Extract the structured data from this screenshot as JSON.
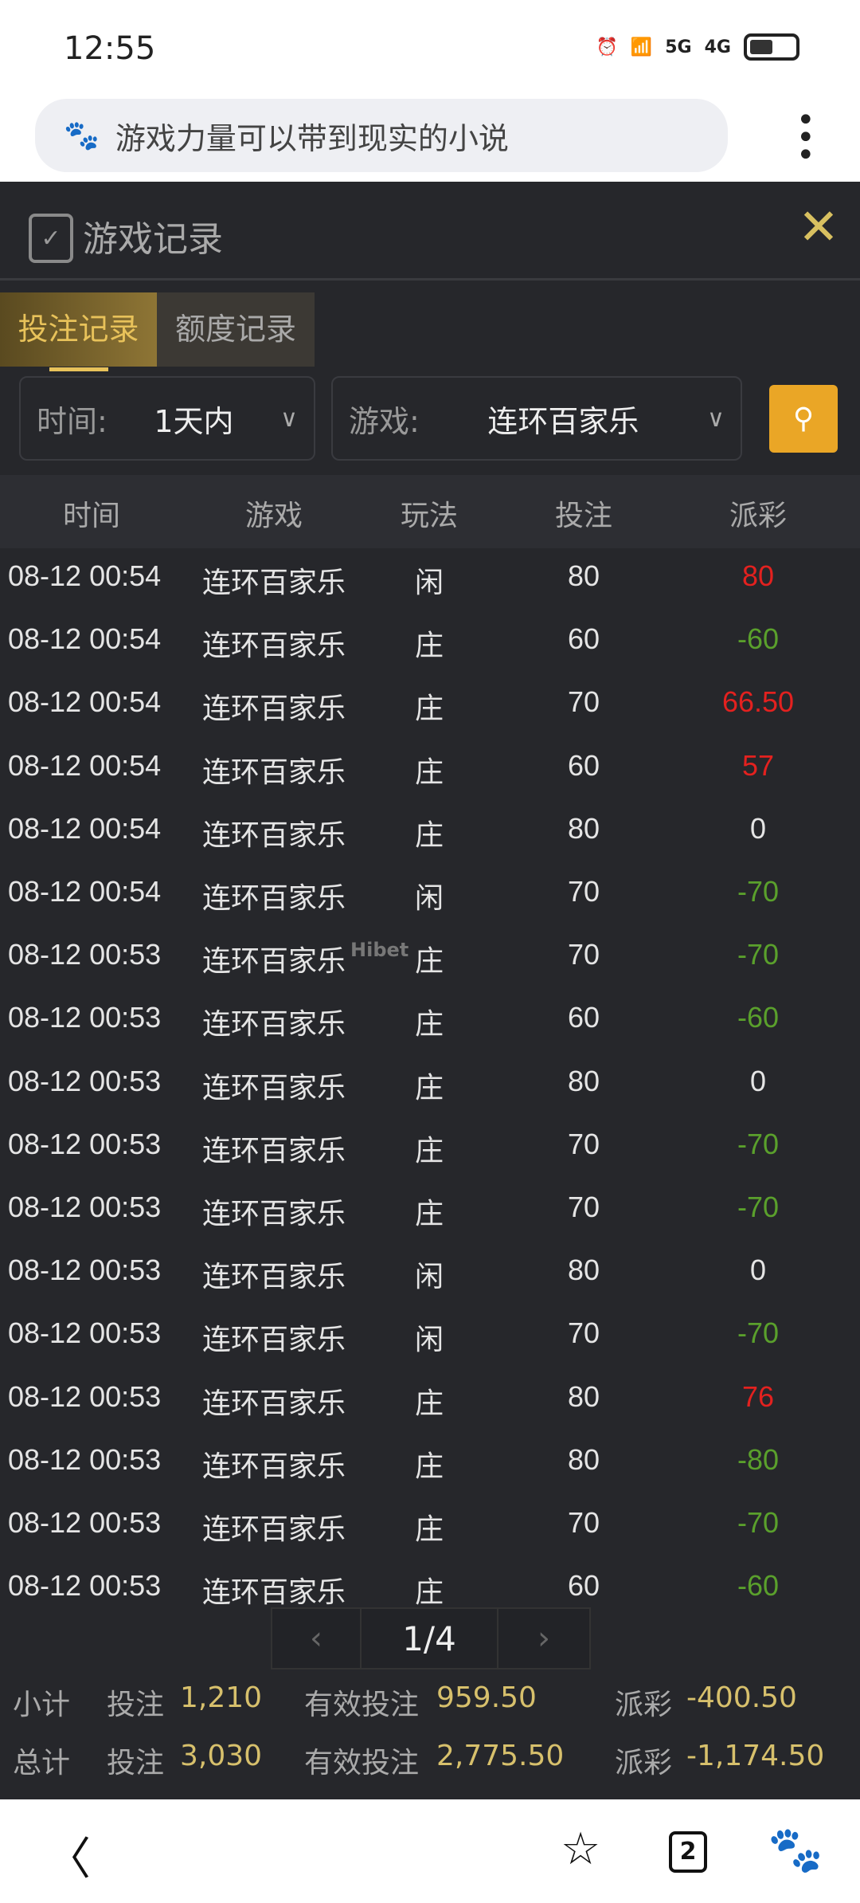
{
  "status": {
    "time": "12:55",
    "net1": "5G",
    "net2": "4G"
  },
  "browser": {
    "query": "游戏力量可以带到现实的小说",
    "tab_count": "2"
  },
  "panel": {
    "title": "游戏记录",
    "tabs": [
      {
        "label": "投注记录",
        "active": true
      },
      {
        "label": "额度记录",
        "active": false
      }
    ],
    "filters": {
      "time_label": "时间:",
      "time_value": "1天内",
      "game_label": "游戏:",
      "game_value": "连环百家乐"
    },
    "columns": [
      "时间",
      "游戏",
      "玩法",
      "投注",
      "派彩"
    ],
    "rows": [
      [
        "08-12 00:54",
        "连环百家乐",
        "闲",
        "80",
        "80"
      ],
      [
        "08-12 00:54",
        "连环百家乐",
        "庄",
        "60",
        "-60"
      ],
      [
        "08-12 00:54",
        "连环百家乐",
        "庄",
        "70",
        "66.50"
      ],
      [
        "08-12 00:54",
        "连环百家乐",
        "庄",
        "60",
        "57"
      ],
      [
        "08-12 00:54",
        "连环百家乐",
        "庄",
        "80",
        "0"
      ],
      [
        "08-12 00:54",
        "连环百家乐",
        "闲",
        "70",
        "-70"
      ],
      [
        "08-12 00:53",
        "连环百家乐",
        "庄",
        "70",
        "-70"
      ],
      [
        "08-12 00:53",
        "连环百家乐",
        "庄",
        "60",
        "-60"
      ],
      [
        "08-12 00:53",
        "连环百家乐",
        "庄",
        "80",
        "0"
      ],
      [
        "08-12 00:53",
        "连环百家乐",
        "庄",
        "70",
        "-70"
      ],
      [
        "08-12 00:53",
        "连环百家乐",
        "庄",
        "70",
        "-70"
      ],
      [
        "08-12 00:53",
        "连环百家乐",
        "闲",
        "80",
        "0"
      ],
      [
        "08-12 00:53",
        "连环百家乐",
        "闲",
        "70",
        "-70"
      ],
      [
        "08-12 00:53",
        "连环百家乐",
        "庄",
        "80",
        "76"
      ],
      [
        "08-12 00:53",
        "连环百家乐",
        "庄",
        "80",
        "-80"
      ],
      [
        "08-12 00:53",
        "连环百家乐",
        "庄",
        "70",
        "-70"
      ],
      [
        "08-12 00:53",
        "连环百家乐",
        "庄",
        "60",
        "-60"
      ]
    ],
    "watermark": "Hibet",
    "pagination": {
      "page": "1/4"
    },
    "subtotal": {
      "label": "小计",
      "bet_label": "投注",
      "bet": "1,210",
      "valid_label": "有效投注",
      "valid": "959.50",
      "payout_label": "派彩",
      "payout": "-400.50"
    },
    "total": {
      "label": "总计",
      "bet_label": "投注",
      "bet": "3,030",
      "valid_label": "有效投注",
      "valid": "2,775.50",
      "payout_label": "派彩",
      "payout": "-1,174.50"
    }
  },
  "colors": {
    "win": "#e3211f",
    "loss": "#5aa02c",
    "accent": "#eaa626",
    "gold": "#d7c06c"
  }
}
